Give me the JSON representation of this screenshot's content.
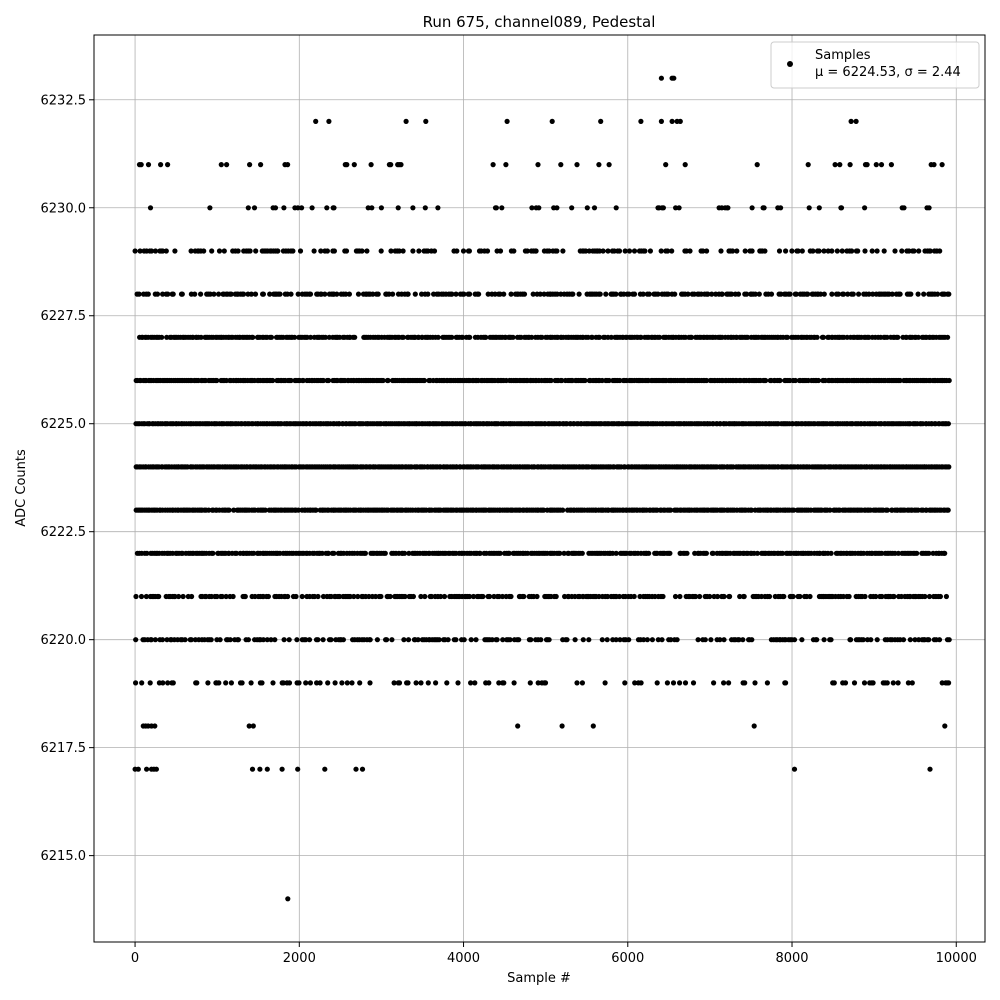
{
  "chart_data": {
    "type": "scatter",
    "title": "Run 675, channel089, Pedestal",
    "xlabel": "Sample #",
    "ylabel": "ADC Counts",
    "xlim": [
      -500,
      10350
    ],
    "ylim": [
      6213,
      6234
    ],
    "xticks": [
      0,
      2000,
      4000,
      6000,
      8000,
      10000
    ],
    "xtick_labels": [
      "0",
      "2000",
      "4000",
      "6000",
      "8000",
      "10000"
    ],
    "yticks": [
      6215.0,
      6217.5,
      6220.0,
      6222.5,
      6225.0,
      6227.5,
      6230.0,
      6232.5
    ],
    "ytick_labels": [
      "6215.0",
      "6217.5",
      "6220.0",
      "6222.5",
      "6225.0",
      "6227.5",
      "6230.0",
      "6232.5"
    ],
    "grid": true,
    "legend": {
      "placement": "top-right",
      "series_label": "Samples",
      "stats_label": "μ = 6224.53, σ = 2.44"
    },
    "series": [
      {
        "name": "Samples",
        "color": "#000000",
        "x_range": [
          0,
          9900
        ],
        "mean": 6224.53,
        "sigma": 2.44,
        "levels": [
          {
            "y": 6214,
            "x": [
              1860
            ]
          },
          {
            "y": 6217,
            "x": [
              0,
              40,
              140,
              200,
              230,
              260,
              1430,
              1520,
              1610,
              1790,
              1980,
              2310,
              2690,
              2770,
              8030,
              9680
            ]
          },
          {
            "y": 6218,
            "x": [
              100,
              130,
              160,
              200,
              240,
              1390,
              1440,
              4660,
              5200,
              5580,
              7540,
              9860
            ]
          },
          {
            "y": 6232,
            "x": [
              2200,
              2360,
              3300,
              3540,
              4530,
              5080,
              5670,
              6160,
              6410,
              6540,
              6600,
              6640,
              8720,
              8780
            ]
          },
          {
            "y": 6233,
            "x": [
              6410,
              6540,
              6560
            ]
          }
        ],
        "dense_levels": [
          {
            "y": 6219,
            "density": 0.25
          },
          {
            "y": 6220,
            "density": 0.45
          },
          {
            "y": 6221,
            "density": 0.6
          },
          {
            "y": 6222,
            "density": 0.8
          },
          {
            "y": 6223,
            "density": 0.95
          },
          {
            "y": 6224,
            "density": 1.0
          },
          {
            "y": 6225,
            "density": 1.0
          },
          {
            "y": 6226,
            "density": 0.95
          },
          {
            "y": 6227,
            "density": 0.85
          },
          {
            "y": 6228,
            "density": 0.6
          },
          {
            "y": 6229,
            "density": 0.4
          },
          {
            "y": 6230,
            "density": 0.12
          },
          {
            "y": 6231,
            "density": 0.08
          }
        ]
      }
    ]
  }
}
